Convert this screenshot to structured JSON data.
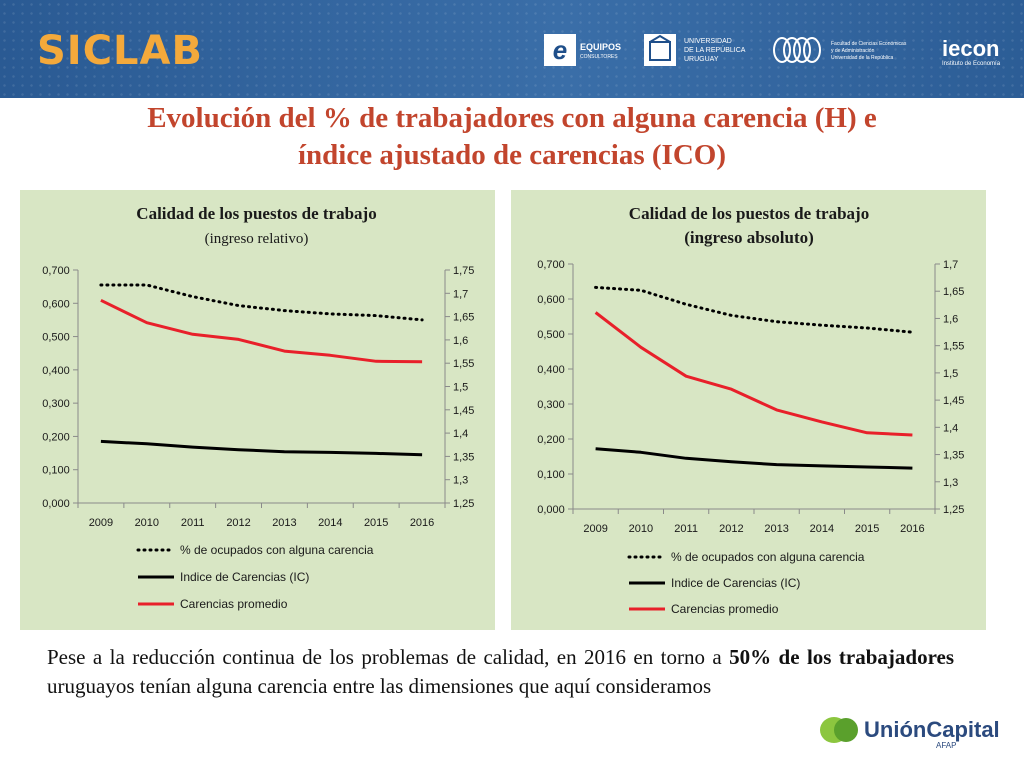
{
  "header": {
    "brand": "SICLAB",
    "logos": {
      "equipos": "EQUIPOS",
      "equipos_sub": "CONSULTORES",
      "udelar_1": "UNIVERSIDAD",
      "udelar_2": "DE LA REPÚBLICA",
      "udelar_3": "URUGUAY",
      "fcea_1": "Facultad de Ciencias Económicas",
      "fcea_2": "y de Administración",
      "fcea_3": "Universidad de la República",
      "iecon": "iecon",
      "iecon_sub": "Instituto de Economía"
    }
  },
  "slide_title": {
    "line1": "Evolución del % de trabajadores con alguna carencia (H) e",
    "line2": "índice ajustado de carencias (ICO)"
  },
  "chart_data": [
    {
      "type": "line",
      "title": "Calidad de los puestos de trabajo",
      "subtitle": "(ingreso relativo)",
      "categories": [
        "2009",
        "2010",
        "2011",
        "2012",
        "2013",
        "2014",
        "2015",
        "2016"
      ],
      "y_left": {
        "min": 0,
        "max": 0.7,
        "step": 0.1,
        "tick_labels": [
          "0,000",
          "0,100",
          "0,200",
          "0,300",
          "0,400",
          "0,500",
          "0,600",
          "0,700"
        ]
      },
      "y_right": {
        "min": 1.25,
        "max": 1.75,
        "step": 0.05,
        "tick_labels": [
          "1,25",
          "1,3",
          "1,35",
          "1,4",
          "1,45",
          "1,5",
          "1,55",
          "1,6",
          "1,65",
          "1,7",
          "1,75"
        ]
      },
      "series": [
        {
          "name": "% de ocupados con alguna carencia",
          "axis": "left",
          "style": "dotted",
          "color": "#000000",
          "values": [
            0.655,
            0.655,
            0.62,
            0.593,
            0.578,
            0.568,
            0.563,
            0.55
          ]
        },
        {
          "name": "Indice de Carencias (IC)",
          "axis": "left",
          "style": "solid",
          "color": "#000000",
          "values": [
            0.185,
            0.178,
            0.168,
            0.16,
            0.154,
            0.152,
            0.149,
            0.145
          ]
        },
        {
          "name": "Carencias promedio",
          "axis": "right",
          "style": "solid",
          "color": "#e8202a",
          "values": [
            1.685,
            1.637,
            1.612,
            1.601,
            1.576,
            1.567,
            1.554,
            1.553
          ]
        }
      ],
      "legend": "bottom"
    },
    {
      "type": "line",
      "title": "Calidad de los puestos de trabajo",
      "subtitle": "(ingreso absoluto)",
      "categories": [
        "2009",
        "2010",
        "2011",
        "2012",
        "2013",
        "2014",
        "2015",
        "2016"
      ],
      "y_left": {
        "min": 0,
        "max": 0.7,
        "step": 0.1,
        "tick_labels": [
          "0,000",
          "0,100",
          "0,200",
          "0,300",
          "0,400",
          "0,500",
          "0,600",
          "0,700"
        ]
      },
      "y_right": {
        "min": 1.25,
        "max": 1.7,
        "step": 0.05,
        "tick_labels": [
          "1,25",
          "1,3",
          "1,35",
          "1,4",
          "1,45",
          "1,5",
          "1,55",
          "1,6",
          "1,65",
          "1,7"
        ]
      },
      "series": [
        {
          "name": "% de ocupados con alguna carencia",
          "axis": "left",
          "style": "dotted",
          "color": "#000000",
          "values": [
            0.633,
            0.625,
            0.585,
            0.553,
            0.535,
            0.525,
            0.517,
            0.505
          ]
        },
        {
          "name": "Indice de Carencias (IC)",
          "axis": "left",
          "style": "solid",
          "color": "#000000",
          "values": [
            0.172,
            0.162,
            0.145,
            0.135,
            0.127,
            0.123,
            0.12,
            0.117
          ]
        },
        {
          "name": "Carencias promedio",
          "axis": "right",
          "style": "solid",
          "color": "#e8202a",
          "values": [
            1.611,
            1.547,
            1.494,
            1.47,
            1.432,
            1.41,
            1.39,
            1.386
          ]
        }
      ],
      "legend": "bottom"
    }
  ],
  "bottom": {
    "p1": "Pese a la reducción continua de los problemas de calidad, en 2016 en torno a ",
    "b1": "50% de los trabajadores",
    "p2": " uruguayos tenían alguna carencia entre las dimensiones que aquí consideramos"
  },
  "footer_logo": {
    "text": "UniónCapital",
    "sub": "AFAP",
    "color": "#2b4a7e",
    "accent": "#8cc63f"
  }
}
